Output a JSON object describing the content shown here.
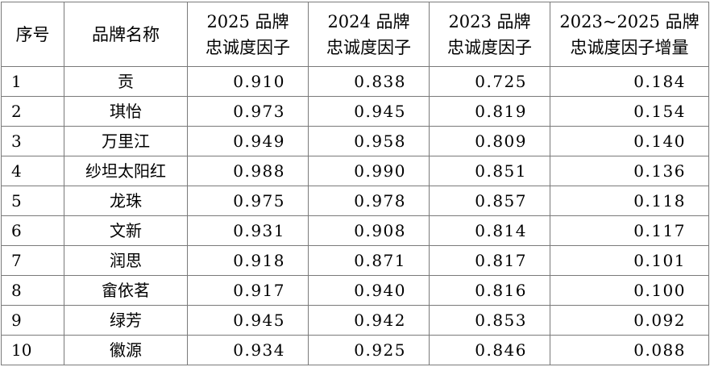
{
  "table": {
    "headers": [
      [
        "序号"
      ],
      [
        "品牌名称"
      ],
      [
        "2025 品牌",
        "忠诚度因子"
      ],
      [
        "2024 品牌",
        "忠诚度因子"
      ],
      [
        "2023 品牌",
        "忠诚度因子"
      ],
      [
        "2023~2025 品牌",
        "忠诚度因子增量"
      ]
    ],
    "rows": [
      [
        "1",
        "贡",
        "0.910",
        "0.838",
        "0.725",
        "0.184"
      ],
      [
        "2",
        "琪怡",
        "0.973",
        "0.945",
        "0.819",
        "0.154"
      ],
      [
        "3",
        "万里江",
        "0.949",
        "0.958",
        "0.809",
        "0.140"
      ],
      [
        "4",
        "纱坦太阳红",
        "0.988",
        "0.990",
        "0.851",
        "0.136"
      ],
      [
        "5",
        "龙珠",
        "0.975",
        "0.978",
        "0.857",
        "0.118"
      ],
      [
        "6",
        "文新",
        "0.931",
        "0.908",
        "0.814",
        "0.117"
      ],
      [
        "7",
        "润思",
        "0.918",
        "0.871",
        "0.817",
        "0.101"
      ],
      [
        "8",
        "畲依茗",
        "0.917",
        "0.940",
        "0.816",
        "0.100"
      ],
      [
        "9",
        "绿芳",
        "0.945",
        "0.942",
        "0.853",
        "0.092"
      ],
      [
        "10",
        "徽源",
        "0.934",
        "0.925",
        "0.846",
        "0.088"
      ]
    ]
  }
}
